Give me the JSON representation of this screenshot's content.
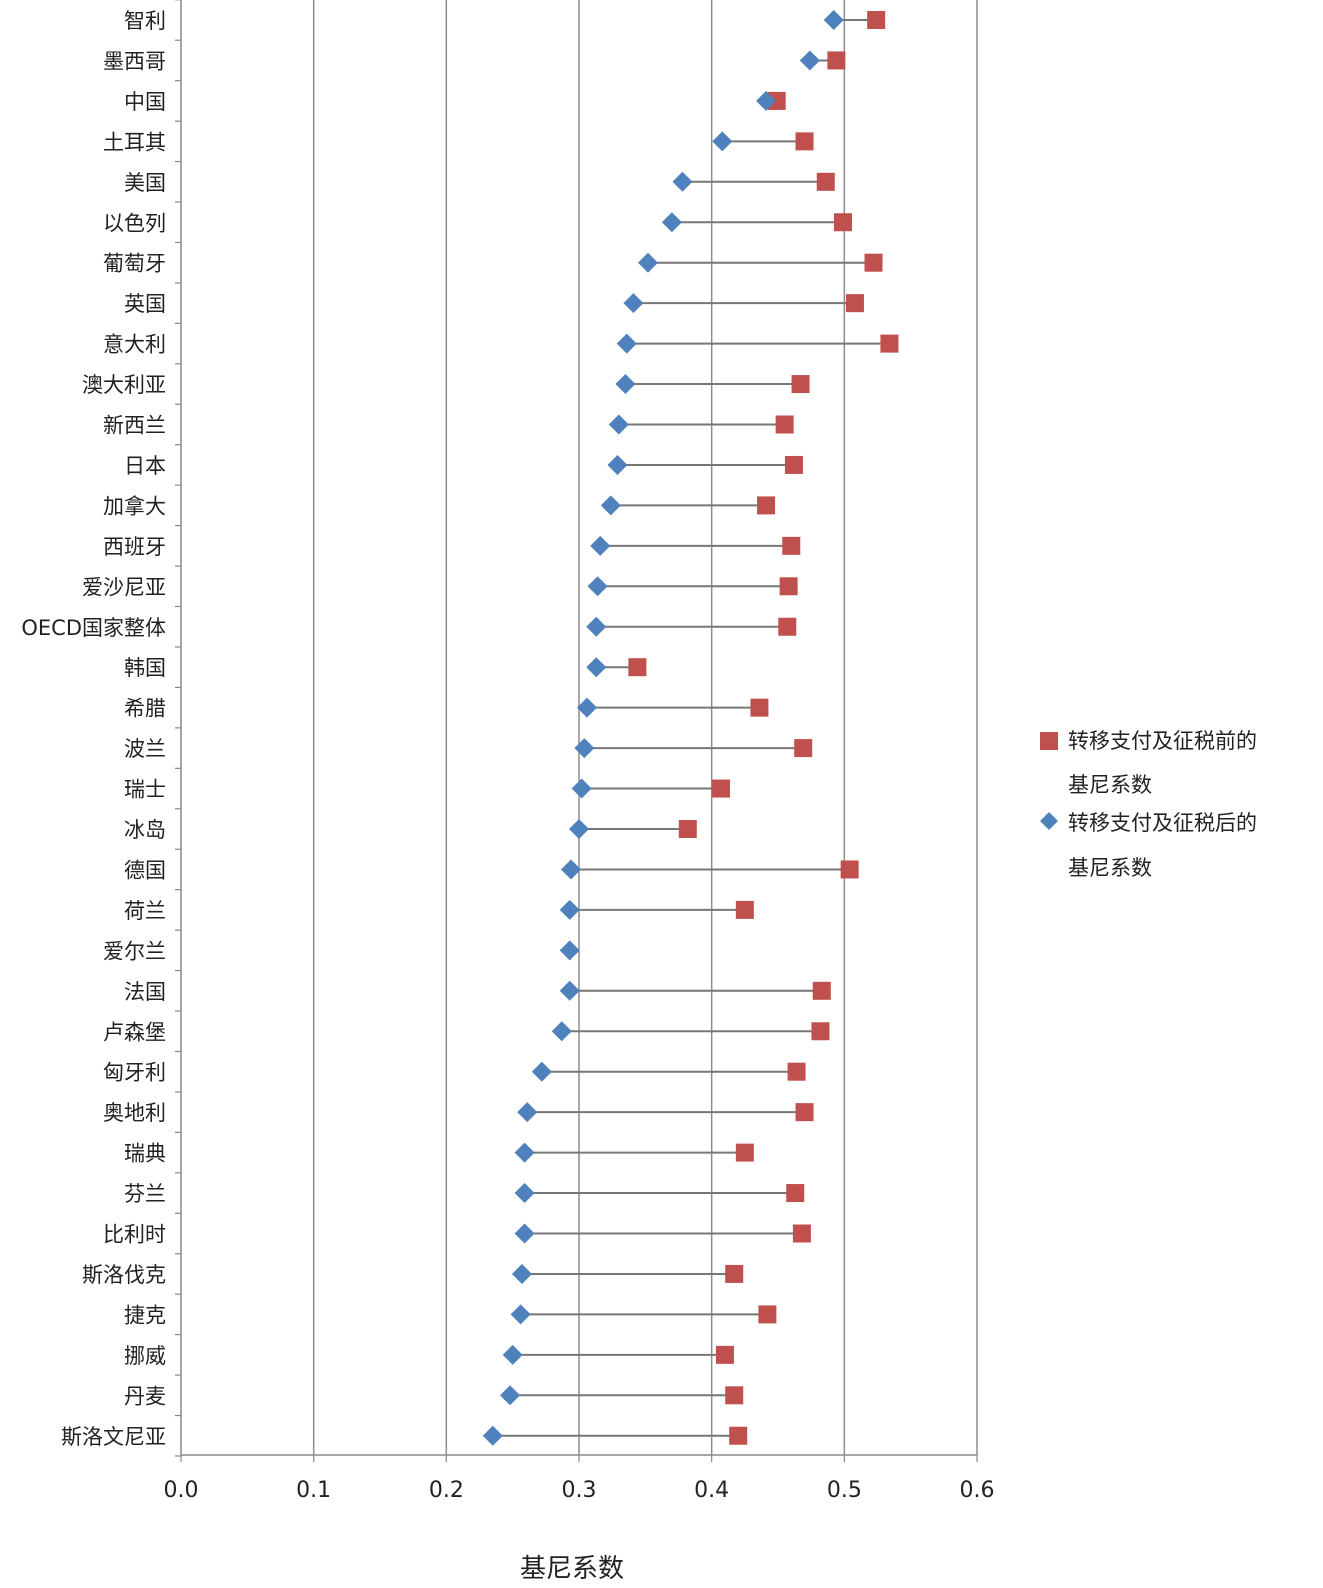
{
  "chart_data": {
    "type": "dot",
    "orientation": "horizontal",
    "categories": [
      "智利",
      "墨西哥",
      "中国",
      "土耳其",
      "美国",
      "以色列",
      "葡萄牙",
      "英国",
      "意大利",
      "澳大利亚",
      "新西兰",
      "日本",
      "加拿大",
      "西班牙",
      "爱沙尼亚",
      "OECD国家整体",
      "韩国",
      "希腊",
      "波兰",
      "瑞士",
      "冰岛",
      "德国",
      "荷兰",
      "爱尔兰",
      "法国",
      "卢森堡",
      "匈牙利",
      "奥地利",
      "瑞典",
      "芬兰",
      "比利时",
      "斯洛伐克",
      "捷克",
      "挪威",
      "丹麦",
      "斯洛文尼亚"
    ],
    "series": [
      {
        "name": "转移支付及征税前的基尼系数",
        "marker": "square",
        "color": "#c0504d",
        "values": [
          0.524,
          0.494,
          0.449,
          0.47,
          0.486,
          0.499,
          0.522,
          0.508,
          0.534,
          0.467,
          0.455,
          0.462,
          0.441,
          0.46,
          0.458,
          0.457,
          0.344,
          0.436,
          0.469,
          0.407,
          0.382,
          0.504,
          0.425,
          null,
          0.483,
          0.482,
          0.464,
          0.47,
          0.425,
          0.463,
          0.468,
          0.417,
          0.442,
          0.41,
          0.417,
          0.42
        ]
      },
      {
        "name": "转移支付及征税后的基尼系数",
        "marker": "diamond",
        "color": "#4f81bd",
        "values": [
          0.492,
          0.474,
          0.441,
          0.408,
          0.378,
          0.37,
          0.352,
          0.341,
          0.336,
          0.335,
          0.33,
          0.329,
          0.324,
          0.316,
          0.314,
          0.313,
          0.313,
          0.306,
          0.304,
          0.302,
          0.3,
          0.294,
          0.293,
          0.293,
          0.293,
          0.287,
          0.272,
          0.261,
          0.259,
          0.259,
          0.259,
          0.257,
          0.256,
          0.25,
          0.248,
          0.235
        ]
      }
    ],
    "xlabel": "基尼系数",
    "xlim": [
      0.0,
      0.6
    ],
    "xticks": [
      0.0,
      0.1,
      0.2,
      0.3,
      0.4,
      0.5,
      0.6
    ],
    "xtick_labels": [
      "0.0",
      "0.1",
      "0.2",
      "0.3",
      "0.4",
      "0.5",
      "0.6"
    ],
    "grid": "vertical",
    "legend_position": "right",
    "legend": {
      "before_line1": "转移支付及征税前的",
      "before_line2": "基尼系数",
      "after_line1": "转移支付及征税后的",
      "after_line2": "基尼系数"
    },
    "colors": {
      "before": "#c0504d",
      "after": "#4f81bd",
      "connector": "#777777",
      "grid": "#8c8c8c"
    }
  }
}
